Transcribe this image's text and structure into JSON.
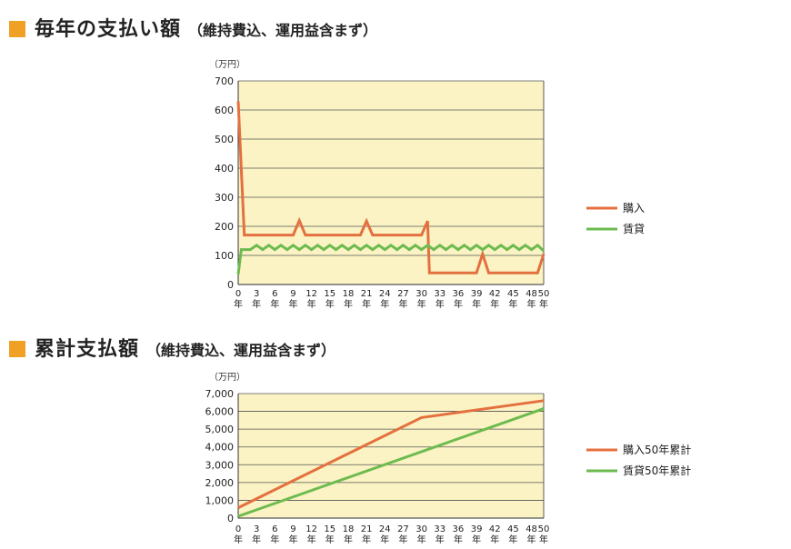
{
  "section1": {
    "title": "毎年の支払い額",
    "subtitle": "（維持費込、運用益含まず）"
  },
  "section2": {
    "title": "累計支払額",
    "subtitle": "（維持費込、運用益含まず）"
  },
  "colors": {
    "accent": "#f0a024",
    "plot_bg": "#fbf3c4",
    "buy": "#e4703f",
    "rent": "#6dbb4f",
    "grid": "#555555"
  },
  "chart_data": [
    {
      "type": "line",
      "unit": "（万円）",
      "ylim": [
        0,
        700
      ],
      "yticks": [
        "0",
        "100",
        "200",
        "300",
        "400",
        "500",
        "600",
        "700"
      ],
      "xlim": [
        0,
        50
      ],
      "xticks": [
        "0",
        "3",
        "6",
        "9",
        "12",
        "15",
        "18",
        "21",
        "24",
        "27",
        "30",
        "33",
        "36",
        "39",
        "42",
        "45",
        "48",
        "50"
      ],
      "xsuffix": "年",
      "legend_position": "right",
      "grid": true,
      "series": [
        {
          "name": "購入",
          "color": "#e4703f",
          "points": [
            [
              0,
              630
            ],
            [
              1,
              170
            ],
            [
              9,
              170
            ],
            [
              10,
              220
            ],
            [
              11,
              170
            ],
            [
              20,
              170
            ],
            [
              21,
              218
            ],
            [
              22,
              170
            ],
            [
              30,
              170
            ],
            [
              31,
              218
            ],
            [
              31.3,
              40
            ],
            [
              39,
              40
            ],
            [
              40,
              105
            ],
            [
              41,
              40
            ],
            [
              49,
              40
            ],
            [
              50,
              105
            ]
          ]
        },
        {
          "name": "賃貸",
          "color": "#6dbb4f",
          "points": [
            [
              0,
              35
            ],
            [
              0.5,
              120
            ],
            [
              2,
              120
            ],
            [
              3,
              135
            ],
            [
              4,
              120
            ],
            [
              5,
              135
            ],
            [
              6,
              120
            ],
            [
              7,
              135
            ],
            [
              8,
              120
            ],
            [
              9,
              135
            ],
            [
              10,
              120
            ],
            [
              11,
              135
            ],
            [
              12,
              120
            ],
            [
              13,
              135
            ],
            [
              14,
              120
            ],
            [
              15,
              135
            ],
            [
              16,
              120
            ],
            [
              17,
              135
            ],
            [
              18,
              120
            ],
            [
              19,
              135
            ],
            [
              20,
              120
            ],
            [
              21,
              135
            ],
            [
              22,
              120
            ],
            [
              23,
              135
            ],
            [
              24,
              120
            ],
            [
              25,
              135
            ],
            [
              26,
              120
            ],
            [
              27,
              135
            ],
            [
              28,
              120
            ],
            [
              29,
              135
            ],
            [
              30,
              120
            ],
            [
              31,
              135
            ],
            [
              32,
              120
            ],
            [
              33,
              135
            ],
            [
              34,
              120
            ],
            [
              35,
              135
            ],
            [
              36,
              120
            ],
            [
              37,
              135
            ],
            [
              38,
              120
            ],
            [
              39,
              135
            ],
            [
              40,
              120
            ],
            [
              41,
              135
            ],
            [
              42,
              120
            ],
            [
              43,
              135
            ],
            [
              44,
              120
            ],
            [
              45,
              135
            ],
            [
              46,
              120
            ],
            [
              47,
              135
            ],
            [
              48,
              120
            ],
            [
              49,
              135
            ],
            [
              50,
              115
            ]
          ]
        }
      ]
    },
    {
      "type": "line",
      "unit": "（万円）",
      "ylim": [
        0,
        7000
      ],
      "yticks": [
        "0",
        "1,000",
        "2,000",
        "3,000",
        "4,000",
        "5,000",
        "6,000",
        "7,000"
      ],
      "xlim": [
        0,
        50
      ],
      "xticks": [
        "0",
        "3",
        "6",
        "9",
        "12",
        "15",
        "18",
        "21",
        "24",
        "27",
        "30",
        "33",
        "36",
        "39",
        "42",
        "45",
        "48",
        "50"
      ],
      "xsuffix": "年",
      "legend_position": "right",
      "grid": true,
      "series": [
        {
          "name": "購入50年累計",
          "color": "#e4703f",
          "points": [
            [
              0,
              580
            ],
            [
              30,
              5650
            ],
            [
              50,
              6600
            ]
          ]
        },
        {
          "name": "賃貸50年累計",
          "color": "#6dbb4f",
          "points": [
            [
              0,
              100
            ],
            [
              50,
              6150
            ]
          ]
        }
      ]
    }
  ]
}
